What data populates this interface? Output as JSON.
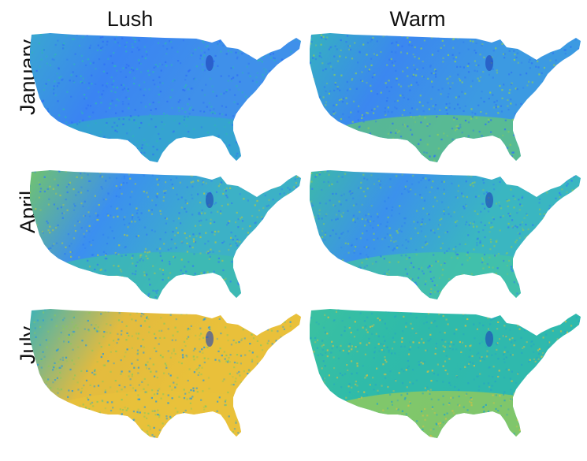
{
  "columns": [
    "Lush",
    "Warm"
  ],
  "rows": [
    "January",
    "April",
    "July"
  ],
  "colors": {
    "cool_blue": "#2f7ef5",
    "blue": "#3f93ee",
    "teal": "#2bb6b9",
    "green": "#72c66a",
    "yellow": "#e6bd3d",
    "text": "#111111",
    "background": "#ffffff"
  },
  "panels": [
    {
      "month": "January",
      "variable": "Lush",
      "fill": {
        "base": "#3a84f2",
        "west": "#3aa8cf",
        "south": "#33a9c8",
        "east": "#3f90ea",
        "noise": "#2f6ff6",
        "patch": "#2fb4b8"
      }
    },
    {
      "month": "January",
      "variable": "Warm",
      "fill": {
        "base": "#3b87f0",
        "west": "#35b3bd",
        "south": "#62c57a",
        "east": "#3c9ae2",
        "noise": "#2e76f3",
        "patch": "#88cc5f"
      }
    },
    {
      "month": "April",
      "variable": "Lush",
      "fill": {
        "base": "#3b8ff0",
        "west": "#74c667",
        "south": "#3dbcad",
        "east": "#3cb1c6",
        "noise": "#2f7ef2",
        "patch": "#a9c64d"
      }
    },
    {
      "month": "April",
      "variable": "Warm",
      "fill": {
        "base": "#3b91ec",
        "west": "#3dbba6",
        "south": "#44c3a3",
        "east": "#3ab6c1",
        "noise": "#2f80f0",
        "patch": "#7fc667"
      }
    },
    {
      "month": "July",
      "variable": "Lush",
      "fill": {
        "base": "#e3bb3e",
        "west": "#35b2bd",
        "south": "#e8c23b",
        "east": "#e9c03a",
        "noise": "#8cc75c",
        "patch": "#2f9ad9"
      }
    },
    {
      "month": "July",
      "variable": "Warm",
      "fill": {
        "base": "#2fbba9",
        "west": "#3cc1a0",
        "south": "#9ccb56",
        "east": "#2fb9ad",
        "noise": "#28a6c2",
        "patch": "#d1c145"
      }
    }
  ]
}
